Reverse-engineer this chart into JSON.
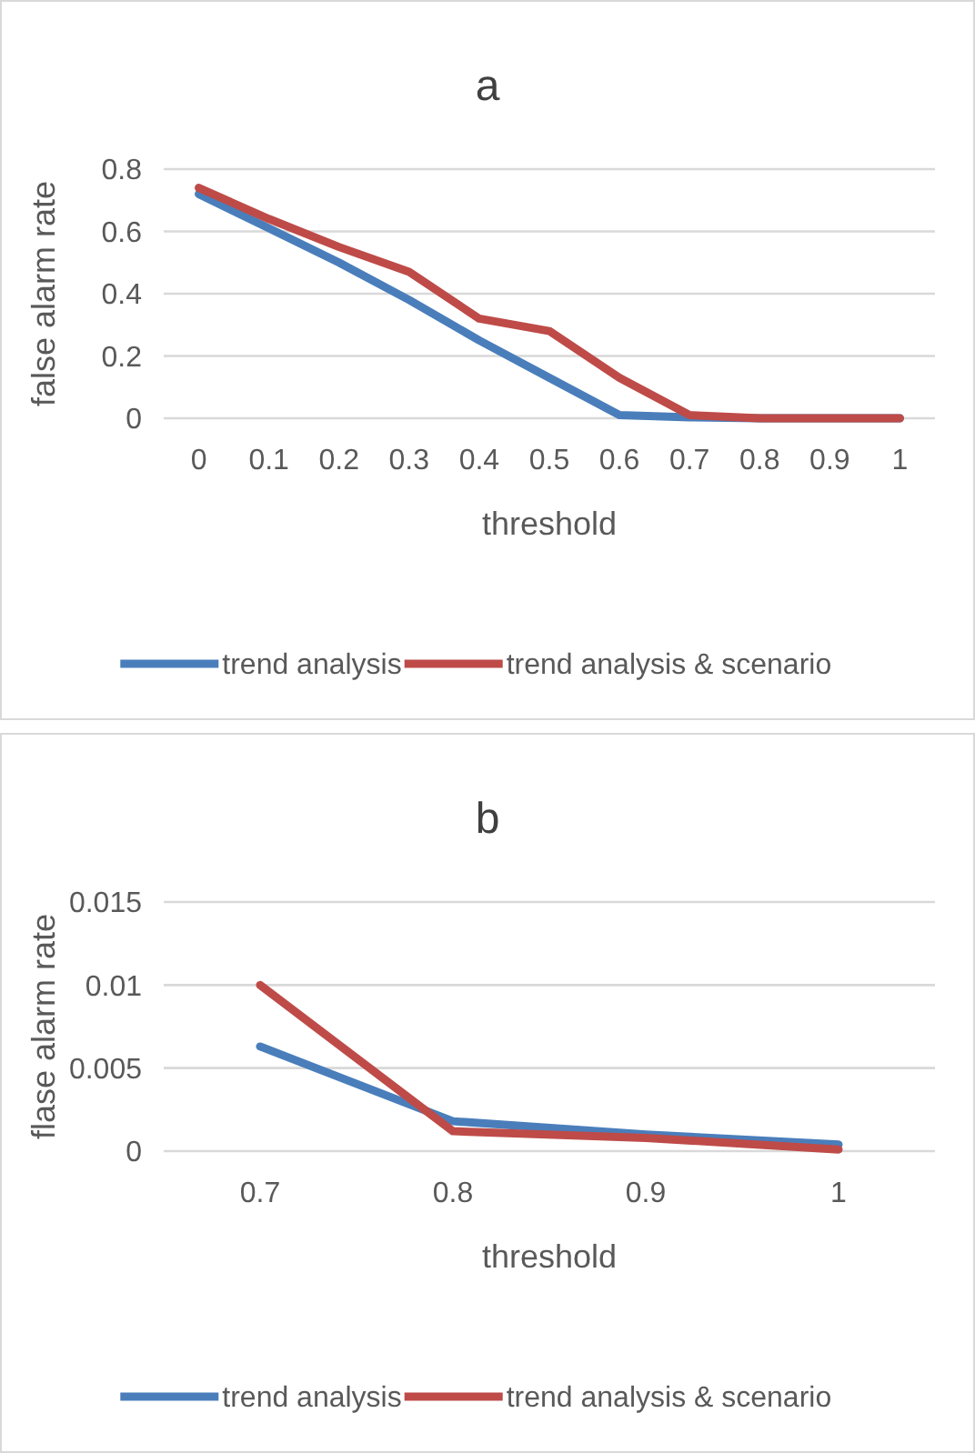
{
  "chart_data": [
    {
      "type": "line",
      "title": "a",
      "xlabel": "threshold",
      "ylabel": "false alarm rate",
      "categories": [
        "0",
        "0.1",
        "0.2",
        "0.3",
        "0.4",
        "0.5",
        "0.6",
        "0.7",
        "0.8",
        "0.9",
        "1"
      ],
      "series": [
        {
          "name": "trend analysis",
          "color": "#4a7ebb",
          "values": [
            0.72,
            0.61,
            0.5,
            0.38,
            0.25,
            0.13,
            0.01,
            0.003,
            0,
            0,
            0
          ]
        },
        {
          "name": "trend analysis & scenario",
          "color": "#be4b48",
          "values": [
            0.74,
            0.64,
            0.55,
            0.47,
            0.32,
            0.28,
            0.13,
            0.01,
            0,
            0,
            0
          ]
        }
      ],
      "ylim": [
        0,
        0.8
      ],
      "yticks": [
        0,
        0.2,
        0.4,
        0.6,
        0.8
      ],
      "grid": "y",
      "legend": "bottom",
      "marker": "none",
      "line_style": "solid"
    },
    {
      "type": "line",
      "title": "b",
      "xlabel": "threshold",
      "ylabel": "flase alarm rate",
      "categories": [
        "0.7",
        "0.8",
        "0.9",
        "1"
      ],
      "series": [
        {
          "name": "trend analysis",
          "color": "#4a7ebb",
          "values": [
            0.0063,
            0.0018,
            0.001,
            0.0004
          ]
        },
        {
          "name": "trend analysis & scenario",
          "color": "#be4b48",
          "values": [
            0.01,
            0.0012,
            0.0008,
            0.0001
          ]
        }
      ],
      "ylim": [
        0,
        0.015
      ],
      "yticks": [
        0,
        0.005,
        0.01,
        0.015
      ],
      "grid": "y",
      "legend": "bottom",
      "marker": "none",
      "line_style": "solid"
    }
  ]
}
